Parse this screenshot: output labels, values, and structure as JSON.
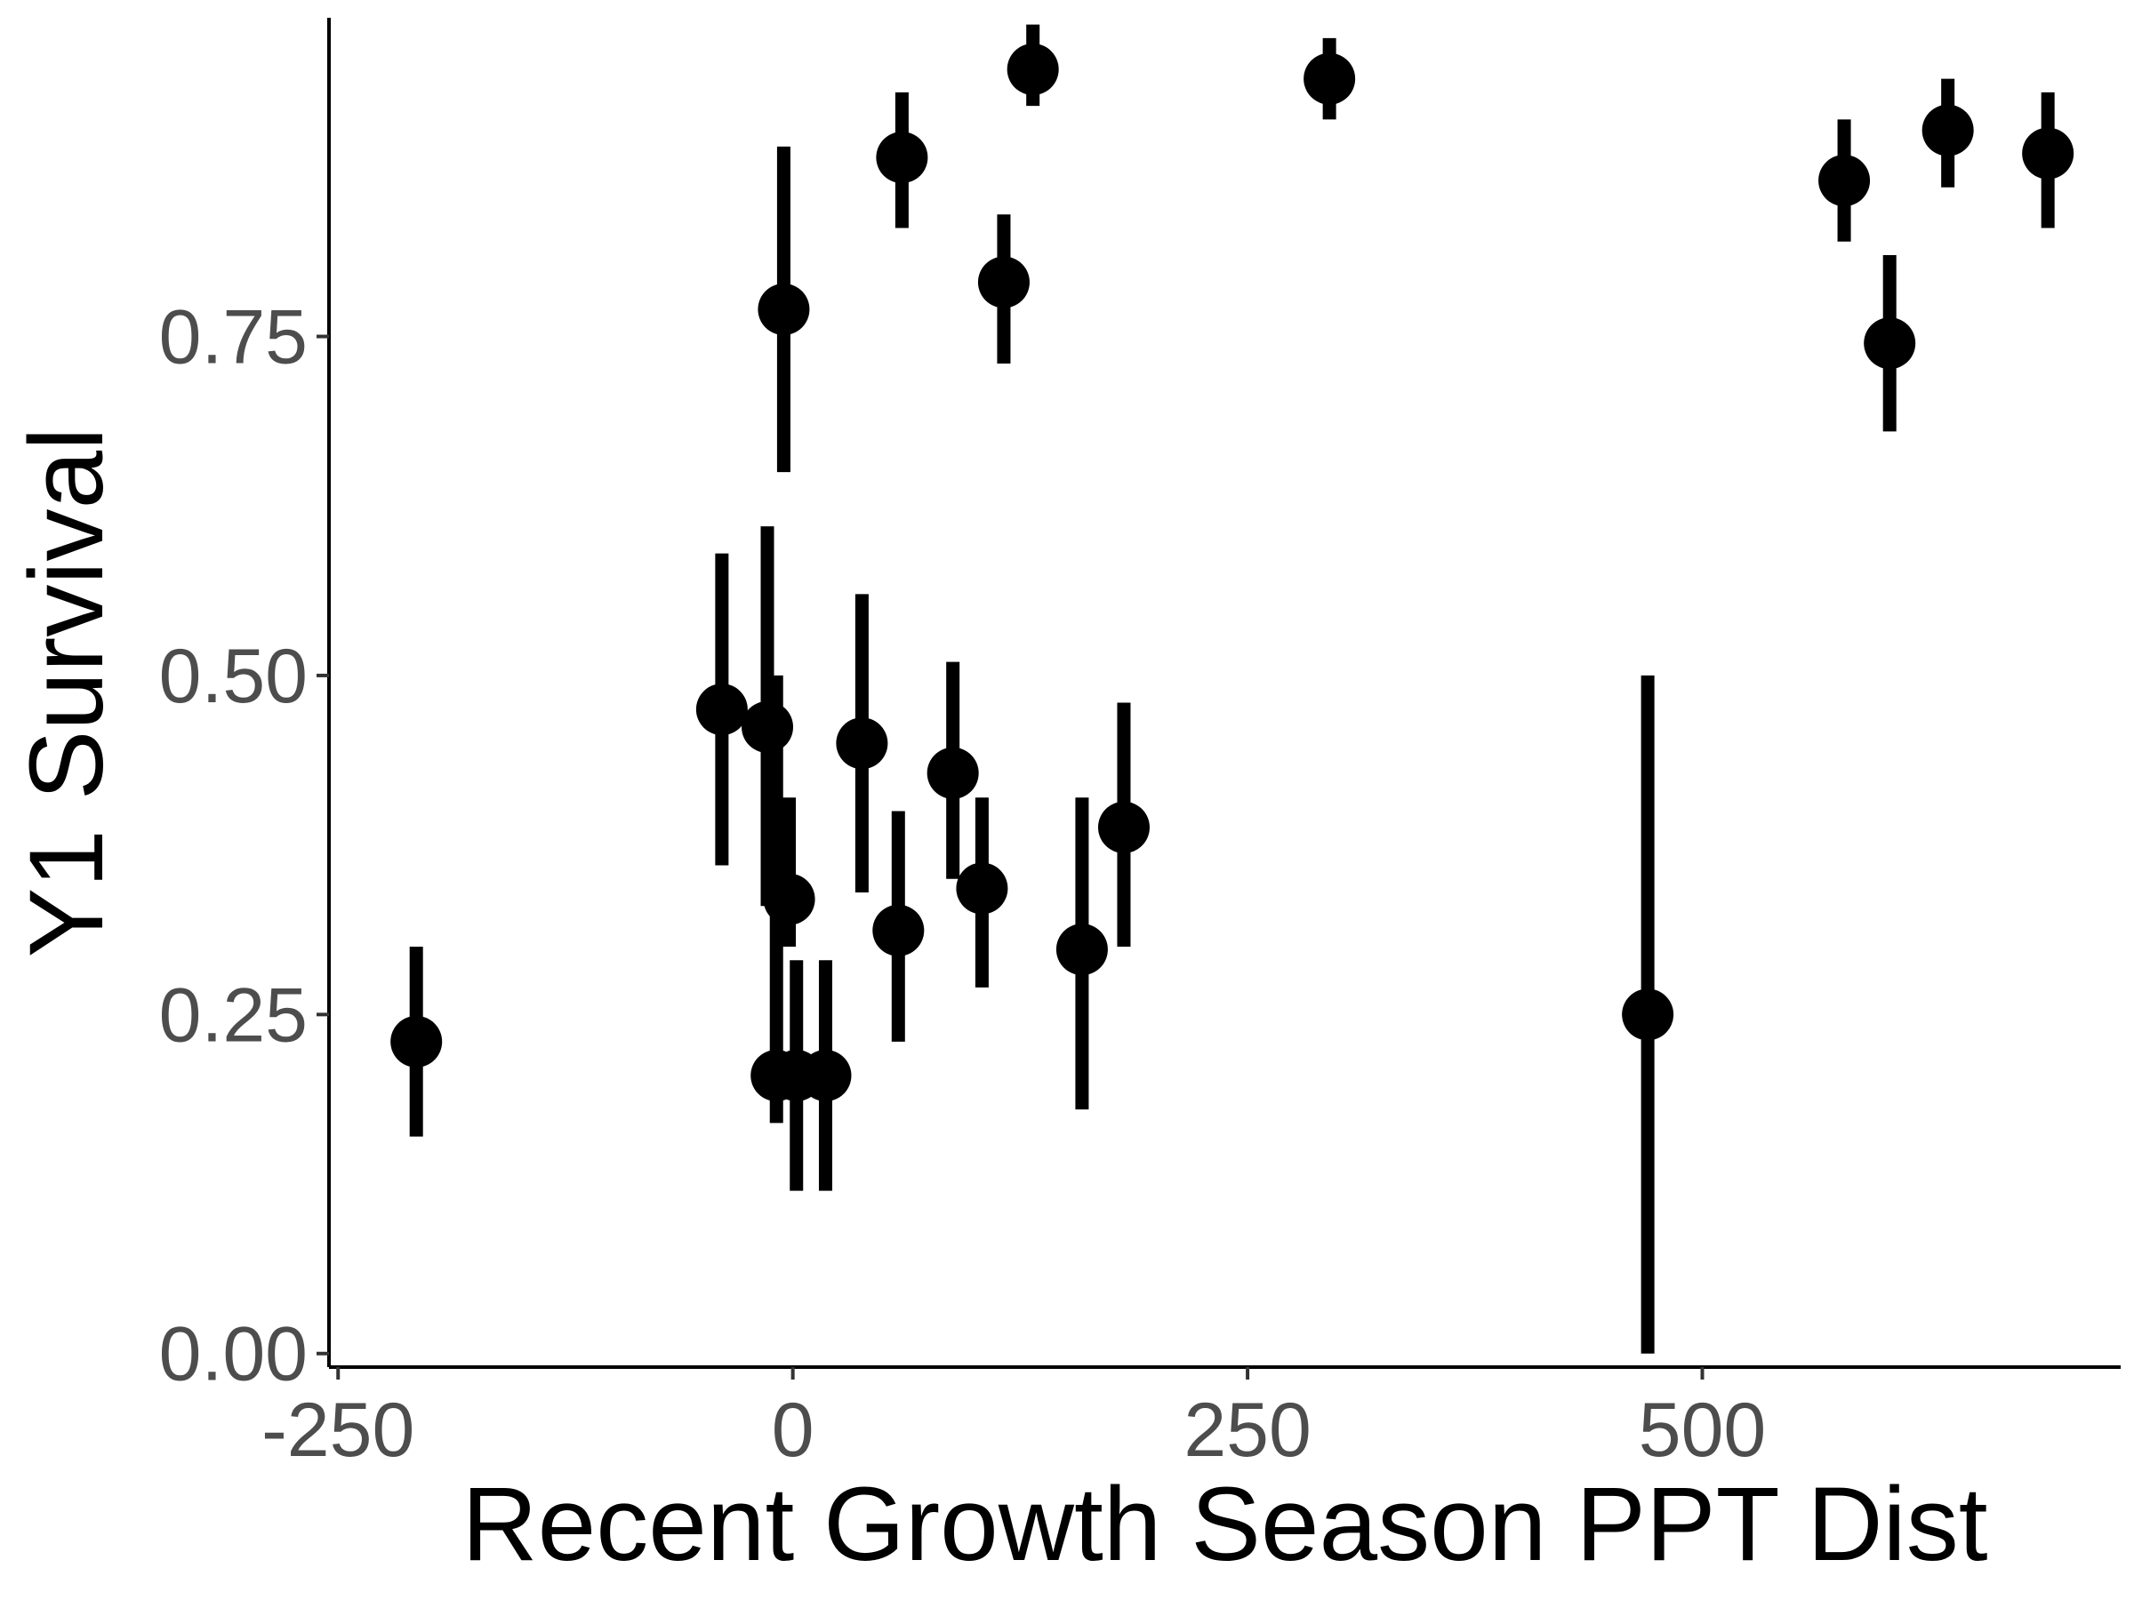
{
  "chart_data": {
    "type": "scatter",
    "title": "",
    "xlabel": "Recent Growth Season PPT Dist",
    "ylabel": "Y1 Survival",
    "xlim": [
      -255,
      730
    ],
    "ylim": [
      -0.01,
      0.985
    ],
    "x_ticks": [
      -250,
      0,
      250,
      500
    ],
    "x_tick_labels": [
      "-250",
      "0",
      "250",
      "500"
    ],
    "y_ticks": [
      0,
      0.25,
      0.5,
      0.75
    ],
    "y_tick_labels": [
      "0.00",
      "0.25",
      "0.50",
      "0.75"
    ],
    "grid": false,
    "legend": "none",
    "point_color": "#000000",
    "points": [
      {
        "x": -207,
        "y": 0.23,
        "lower": 0.16,
        "upper": 0.3
      },
      {
        "x": -39,
        "y": 0.475,
        "lower": 0.36,
        "upper": 0.59
      },
      {
        "x": -14,
        "y": 0.462,
        "lower": 0.33,
        "upper": 0.61
      },
      {
        "x": -5,
        "y": 0.77,
        "lower": 0.65,
        "upper": 0.89
      },
      {
        "x": -9,
        "y": 0.205,
        "lower": 0.17,
        "upper": 0.5
      },
      {
        "x": -2,
        "y": 0.335,
        "lower": 0.3,
        "upper": 0.41
      },
      {
        "x": 2,
        "y": 0.205,
        "lower": 0.12,
        "upper": 0.29
      },
      {
        "x": 18,
        "y": 0.205,
        "lower": 0.12,
        "upper": 0.29
      },
      {
        "x": 38,
        "y": 0.45,
        "lower": 0.34,
        "upper": 0.56
      },
      {
        "x": 58,
        "y": 0.312,
        "lower": 0.23,
        "upper": 0.4
      },
      {
        "x": 60,
        "y": 0.882,
        "lower": 0.83,
        "upper": 0.93
      },
      {
        "x": 88,
        "y": 0.428,
        "lower": 0.35,
        "upper": 0.51
      },
      {
        "x": 104,
        "y": 0.343,
        "lower": 0.27,
        "upper": 0.41
      },
      {
        "x": 116,
        "y": 0.79,
        "lower": 0.73,
        "upper": 0.84
      },
      {
        "x": 132,
        "y": 0.947,
        "lower": 0.92,
        "upper": 0.98
      },
      {
        "x": 159,
        "y": 0.298,
        "lower": 0.18,
        "upper": 0.41
      },
      {
        "x": 182,
        "y": 0.388,
        "lower": 0.3,
        "upper": 0.48
      },
      {
        "x": 295,
        "y": 0.94,
        "lower": 0.91,
        "upper": 0.97
      },
      {
        "x": 470,
        "y": 0.25,
        "lower": 0.0,
        "upper": 0.5
      },
      {
        "x": 578,
        "y": 0.865,
        "lower": 0.82,
        "upper": 0.91
      },
      {
        "x": 603,
        "y": 0.745,
        "lower": 0.68,
        "upper": 0.81
      },
      {
        "x": 635,
        "y": 0.902,
        "lower": 0.86,
        "upper": 0.94
      },
      {
        "x": 690,
        "y": 0.885,
        "lower": 0.83,
        "upper": 0.93
      }
    ]
  }
}
